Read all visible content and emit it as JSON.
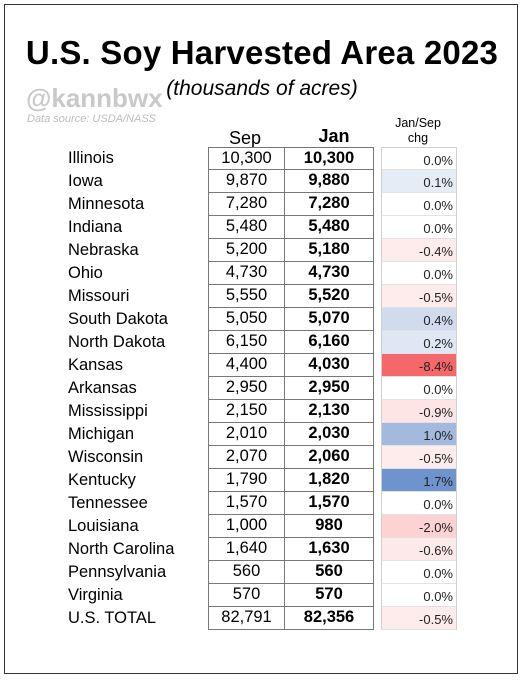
{
  "header": {
    "title": "U.S. Soy Harvested Area 2023",
    "subtitle": "(thousands of acres)",
    "handle": "@kannbwx",
    "source": "Data source: USDA/NASS"
  },
  "colors": {
    "positive_strong": "#6f93cc",
    "positive_light": "#e8eef7",
    "negative_strong": "#f4676b",
    "negative_light": "#fbe4e4",
    "cell_border": "#777777"
  },
  "chart_data": {
    "type": "table",
    "columns": [
      "",
      "Sep",
      "Jan",
      "Jan/Sep chg"
    ],
    "col_sep": "Sep",
    "col_jan": "Jan",
    "col_chg_line1": "Jan/Sep",
    "col_chg_line2": "chg",
    "rows": [
      {
        "state": "Illinois",
        "sep": "10,300",
        "jan": "10,300",
        "chg": "0.0%",
        "chg_value": 0.0
      },
      {
        "state": "Iowa",
        "sep": "9,870",
        "jan": "9,880",
        "chg": "0.1%",
        "chg_value": 0.1
      },
      {
        "state": "Minnesota",
        "sep": "7,280",
        "jan": "7,280",
        "chg": "0.0%",
        "chg_value": 0.0
      },
      {
        "state": "Indiana",
        "sep": "5,480",
        "jan": "5,480",
        "chg": "0.0%",
        "chg_value": 0.0
      },
      {
        "state": "Nebraska",
        "sep": "5,200",
        "jan": "5,180",
        "chg": "-0.4%",
        "chg_value": -0.4
      },
      {
        "state": "Ohio",
        "sep": "4,730",
        "jan": "4,730",
        "chg": "0.0%",
        "chg_value": 0.0
      },
      {
        "state": "Missouri",
        "sep": "5,550",
        "jan": "5,520",
        "chg": "-0.5%",
        "chg_value": -0.5
      },
      {
        "state": "South Dakota",
        "sep": "5,050",
        "jan": "5,070",
        "chg": "0.4%",
        "chg_value": 0.4
      },
      {
        "state": "North Dakota",
        "sep": "6,150",
        "jan": "6,160",
        "chg": "0.2%",
        "chg_value": 0.2
      },
      {
        "state": "Kansas",
        "sep": "4,400",
        "jan": "4,030",
        "chg": "-8.4%",
        "chg_value": -8.4
      },
      {
        "state": "Arkansas",
        "sep": "2,950",
        "jan": "2,950",
        "chg": "0.0%",
        "chg_value": 0.0
      },
      {
        "state": "Mississippi",
        "sep": "2,150",
        "jan": "2,130",
        "chg": "-0.9%",
        "chg_value": -0.9
      },
      {
        "state": "Michigan",
        "sep": "2,010",
        "jan": "2,030",
        "chg": "1.0%",
        "chg_value": 1.0
      },
      {
        "state": "Wisconsin",
        "sep": "2,070",
        "jan": "2,060",
        "chg": "-0.5%",
        "chg_value": -0.5
      },
      {
        "state": "Kentucky",
        "sep": "1,790",
        "jan": "1,820",
        "chg": "1.7%",
        "chg_value": 1.7
      },
      {
        "state": "Tennessee",
        "sep": "1,570",
        "jan": "1,570",
        "chg": "0.0%",
        "chg_value": 0.0
      },
      {
        "state": "Louisiana",
        "sep": "1,000",
        "jan": "980",
        "chg": "-2.0%",
        "chg_value": -2.0
      },
      {
        "state": "North Carolina",
        "sep": "1,640",
        "jan": "1,630",
        "chg": "-0.6%",
        "chg_value": -0.6
      },
      {
        "state": "Pennsylvania",
        "sep": "560",
        "jan": "560",
        "chg": "0.0%",
        "chg_value": 0.0
      },
      {
        "state": "Virginia",
        "sep": "570",
        "jan": "570",
        "chg": "0.0%",
        "chg_value": 0.0
      },
      {
        "state": "U.S. TOTAL",
        "sep": "82,791",
        "jan": "82,356",
        "chg": "-0.5%",
        "chg_value": -0.5
      }
    ]
  }
}
